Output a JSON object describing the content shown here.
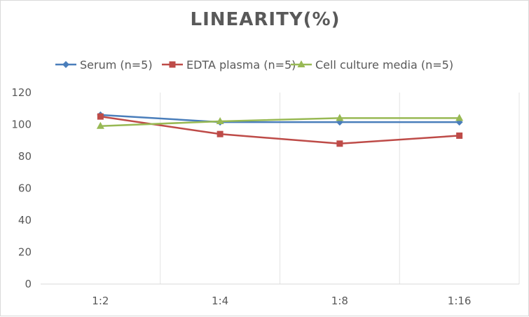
{
  "chart_data": {
    "type": "line",
    "title": "LINEARITY(%)",
    "categories": [
      "1:2",
      "1:4",
      "1:8",
      "1:16"
    ],
    "series": [
      {
        "name": "Serum (n=5)",
        "values": [
          106,
          101.5,
          101.5,
          101.5
        ],
        "color": "#4a7ebb",
        "marker": "diamond"
      },
      {
        "name": "EDTA plasma (n=5)",
        "values": [
          105,
          94,
          88,
          93
        ],
        "color": "#be4b48",
        "marker": "square"
      },
      {
        "name": "Cell culture media (n=5)",
        "values": [
          99,
          102,
          104,
          104
        ],
        "color": "#98b954",
        "marker": "triangle"
      }
    ],
    "ylim": [
      0,
      120
    ],
    "yticks": [
      0,
      20,
      40,
      60,
      80,
      100,
      120
    ],
    "grid": "vertical",
    "legend": "top"
  }
}
